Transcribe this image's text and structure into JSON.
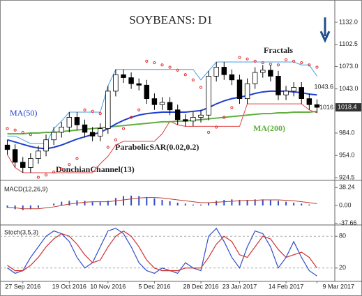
{
  "chart_data": {
    "type": "candlestick",
    "title": "SOYBEANS: D1",
    "categories": [
      null,
      null,
      "27 Sep 2016",
      null,
      null,
      null,
      null,
      null,
      "19 Oct 2016",
      null,
      null,
      null,
      null,
      "10 Nov 2016",
      null,
      null,
      null,
      null,
      null,
      "5 Dec 2016",
      null,
      null,
      null,
      null,
      null,
      "28 Dec 2016",
      null,
      null,
      null,
      null,
      "23 Jan 2017",
      null,
      null,
      null,
      null,
      null,
      "14 Feb 2017",
      null,
      null,
      null,
      "9 Mar 2017"
    ],
    "open": [
      968,
      962,
      945,
      938,
      950,
      960,
      975,
      985,
      992,
      1005,
      995,
      985,
      980,
      990,
      1040,
      1062,
      1058,
      1050,
      1048,
      1030,
      1022,
      1025,
      1015,
      1002,
      1000,
      1005,
      1008,
      1060,
      1072,
      1062,
      1055,
      1030,
      1050,
      1065,
      1068,
      1060,
      1035,
      1040,
      1045,
      1030,
      1022
    ],
    "high": [
      975,
      969,
      952,
      957,
      967,
      982,
      992,
      999,
      1012,
      1012,
      1002,
      992,
      997,
      1047,
      1069,
      1069,
      1065,
      1057,
      1055,
      1037,
      1032,
      1032,
      1022,
      1009,
      1012,
      1015,
      1067,
      1079,
      1079,
      1069,
      1062,
      1057,
      1072,
      1075,
      1075,
      1067,
      1047,
      1052,
      1052,
      1037,
      1029
    ],
    "low": [
      955,
      938,
      931,
      931,
      943,
      953,
      968,
      978,
      985,
      988,
      978,
      973,
      973,
      983,
      1033,
      1051,
      1043,
      1041,
      1023,
      1015,
      1015,
      1008,
      995,
      993,
      993,
      998,
      1001,
      1053,
      1055,
      1048,
      1023,
      1023,
      1043,
      1058,
      1053,
      1028,
      1028,
      1033,
      1023,
      1015,
      1011
    ],
    "close": [
      962,
      945,
      938,
      950,
      960,
      975,
      985,
      992,
      1005,
      995,
      985,
      980,
      990,
      1040,
      1062,
      1058,
      1050,
      1048,
      1030,
      1022,
      1025,
      1015,
      1002,
      1000,
      1005,
      1008,
      1060,
      1072,
      1062,
      1055,
      1030,
      1050,
      1065,
      1068,
      1060,
      1035,
      1040,
      1045,
      1030,
      1022,
      1018.4
    ],
    "ylim": [
      921.7,
      1161.8
    ],
    "yticks": [
      {
        "value": 1132,
        "label": "1132.0"
      },
      1102.5,
      {
        "value": 1073,
        "label": "1073.0"
      },
      {
        "value": 1043,
        "label": "1043.0"
      },
      {
        "value": 984,
        "label": "984.0"
      },
      {
        "value": 954,
        "label": "954.0"
      },
      924.5
    ],
    "last_price": 1018.4,
    "level_labels": [
      1043.6,
      1016
    ],
    "fractals_label": "Fractals",
    "ma50": {
      "name": "MA(50)",
      "color": "#1f3fcf",
      "values": [
        975,
        972,
        969,
        966,
        964,
        963,
        965,
        968,
        972,
        976,
        979,
        982,
        985,
        990,
        996,
        1001,
        1005,
        1008,
        1010,
        1011,
        1012,
        1012,
        1012,
        1012,
        1013,
        1014,
        1018,
        1023,
        1027,
        1030,
        1032,
        1034,
        1037,
        1039,
        1040,
        1040,
        1040,
        1039,
        1038,
        1036,
        1035
      ]
    },
    "ma200": {
      "name": "MA(200)",
      "color": "#5fae3e",
      "values": [
        983,
        983,
        983,
        984,
        984,
        985,
        985,
        986,
        987,
        988,
        989,
        990,
        991,
        992,
        993,
        994,
        995,
        996,
        997,
        998,
        999,
        999,
        1000,
        1000,
        1001,
        1002,
        1003,
        1004,
        1005,
        1006,
        1007,
        1008,
        1009,
        1010,
        1010,
        1011,
        1011,
        1012,
        1012,
        1012,
        1013
      ]
    },
    "sar": {
      "name": "ParabolicSAR(0.02,0.2)",
      "color": "#e03030",
      "values": [
        990,
        988,
        985,
        982,
        925,
        928,
        932,
        936,
        942,
        950,
        1015,
        1013,
        1010,
        965,
        975,
        990,
        1005,
        1015,
        1080,
        1078,
        1075,
        1072,
        1068,
        1062,
        1055,
        1045,
        985,
        992,
        1005,
        1018,
        1085,
        1083,
        1080,
        1078,
        1076,
        1075,
        1082,
        1080,
        1078,
        1075,
        1072
      ]
    },
    "donchian": {
      "name": "DonchianChannel(13)",
      "color": "#4b9be0",
      "upper": [
        980,
        980,
        975,
        970,
        970,
        970,
        990,
        1000,
        1012,
        1012,
        1012,
        1012,
        1012,
        1047,
        1069,
        1069,
        1069,
        1069,
        1069,
        1069,
        1069,
        1069,
        1069,
        1069,
        1069,
        1055,
        1067,
        1079,
        1079,
        1079,
        1079,
        1079,
        1079,
        1079,
        1079,
        1079,
        1079,
        1079,
        1075,
        1075,
        1060
      ],
      "lower": [
        955,
        938,
        931,
        931,
        931,
        931,
        931,
        931,
        931,
        931,
        931,
        931,
        943,
        953,
        968,
        973,
        973,
        973,
        973,
        973,
        983,
        1000,
        995,
        993,
        993,
        993,
        993,
        993,
        993,
        993,
        993,
        1023,
        1023,
        1023,
        1023,
        1023,
        1023,
        1023,
        1023,
        1015,
        1011
      ]
    },
    "macd": {
      "type": "macd",
      "label": "MACD(12,26,9)",
      "ylim": [
        -40,
        52
      ],
      "yticks": [
        38.24,
        {
          "value": 0,
          "label": "0.00"
        },
        -37.66
      ],
      "hist": {
        "color": "#2f4fc8",
        "values": [
          -5,
          -8,
          -10,
          -8,
          -5,
          0,
          4,
          8,
          10,
          11,
          10,
          8,
          7,
          10,
          16,
          20,
          21,
          20,
          18,
          15,
          12,
          9,
          6,
          4,
          2,
          2,
          6,
          10,
          12,
          13,
          12,
          12,
          13,
          13,
          12,
          10,
          8,
          6,
          4,
          2,
          0
        ]
      },
      "signal": {
        "color": "#c0392b",
        "values": [
          -4,
          -5,
          -7,
          -7,
          -7,
          -5,
          -3,
          0,
          3,
          5,
          7,
          8,
          8,
          8,
          10,
          12,
          14,
          16,
          17,
          17,
          16,
          14,
          12,
          10,
          8,
          6,
          6,
          7,
          8,
          9,
          10,
          11,
          11,
          12,
          12,
          12,
          11,
          10,
          8,
          6,
          4
        ]
      }
    },
    "stoch": {
      "type": "stochastic",
      "label": "Stoch(3,5,3)",
      "ylim": [
        0,
        100
      ],
      "yticks": [
        80,
        20
      ],
      "k": {
        "color": "#2f4fc8",
        "values": [
          20,
          10,
          15,
          40,
          60,
          80,
          90,
          85,
          70,
          40,
          20,
          30,
          60,
          90,
          95,
          85,
          60,
          30,
          15,
          10,
          20,
          15,
          10,
          30,
          20,
          15,
          80,
          95,
          70,
          40,
          20,
          60,
          90,
          85,
          60,
          20,
          40,
          70,
          40,
          15,
          5
        ]
      },
      "d": {
        "color": "#d03030",
        "values": [
          25,
          15,
          15,
          25,
          40,
          60,
          75,
          85,
          80,
          65,
          45,
          30,
          35,
          60,
          80,
          90,
          80,
          60,
          35,
          20,
          15,
          15,
          15,
          20,
          20,
          20,
          40,
          65,
          80,
          70,
          45,
          40,
          60,
          80,
          75,
          55,
          40,
          45,
          50,
          40,
          20
        ]
      }
    }
  }
}
